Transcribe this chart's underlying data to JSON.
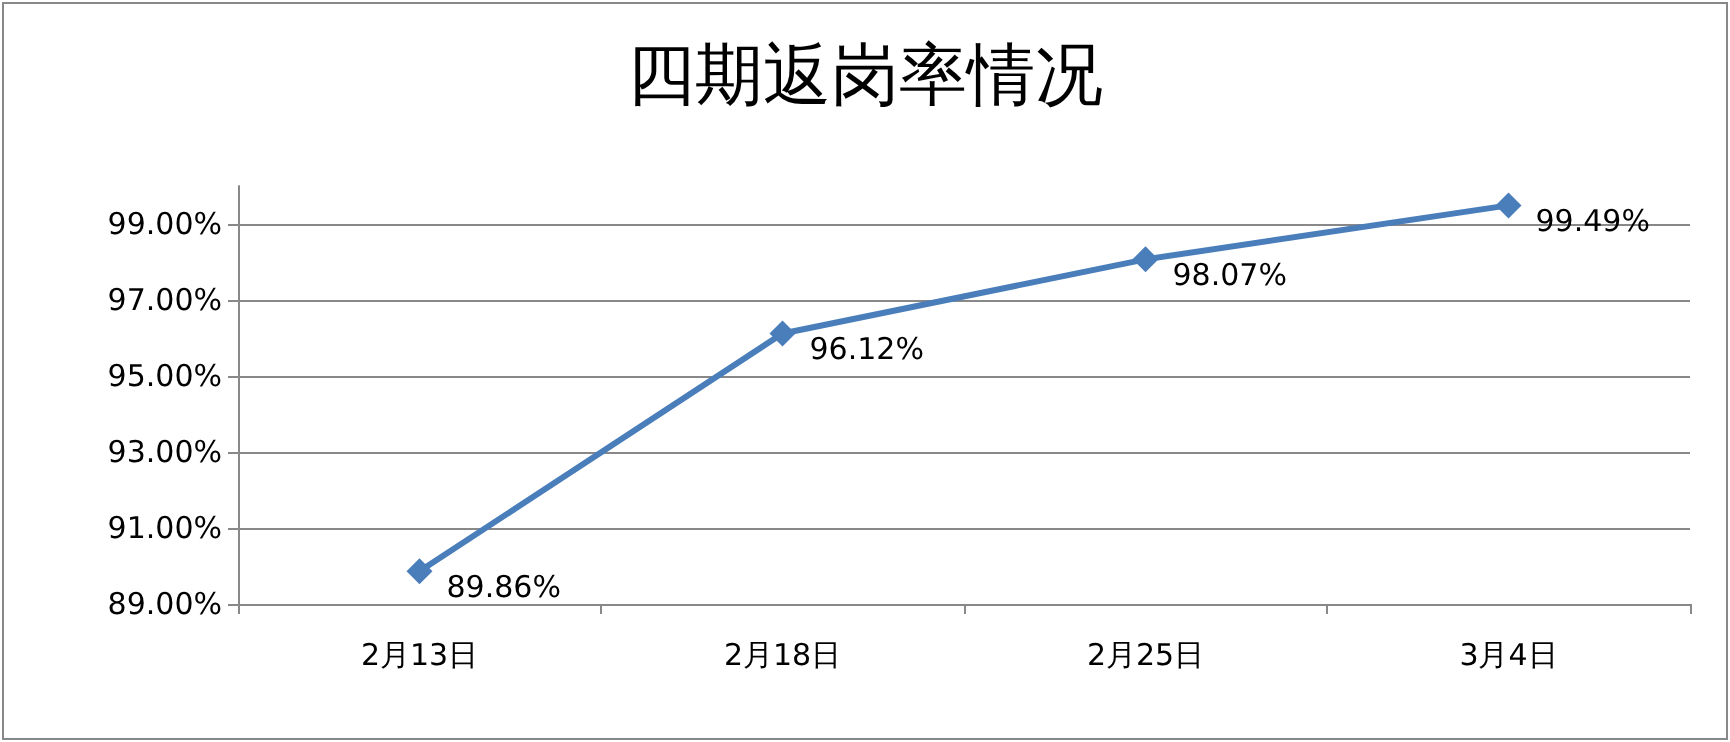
{
  "chart_data": {
    "type": "line",
    "title": "四期返岗率情况",
    "categories": [
      "2月13日",
      "2月18日",
      "2月25日",
      "3月4日"
    ],
    "series": [
      {
        "color": "#4a7ebb",
        "values": [
          89.86,
          96.12,
          98.07,
          99.49
        ],
        "value_labels": [
          "89.86%",
          "96.12%",
          "98.07%",
          "99.49%"
        ]
      }
    ],
    "ylim": [
      89,
      100
    ],
    "yticks": [
      {
        "value": 89,
        "label": "89.00%"
      },
      {
        "value": 91,
        "label": "91.00%"
      },
      {
        "value": 93,
        "label": "93.00%"
      },
      {
        "value": 95,
        "label": "95.00%"
      },
      {
        "value": 97,
        "label": "97.00%"
      },
      {
        "value": 99,
        "label": "99.00%"
      }
    ],
    "grid": "y",
    "marker": "diamond",
    "line_style": "solid"
  }
}
